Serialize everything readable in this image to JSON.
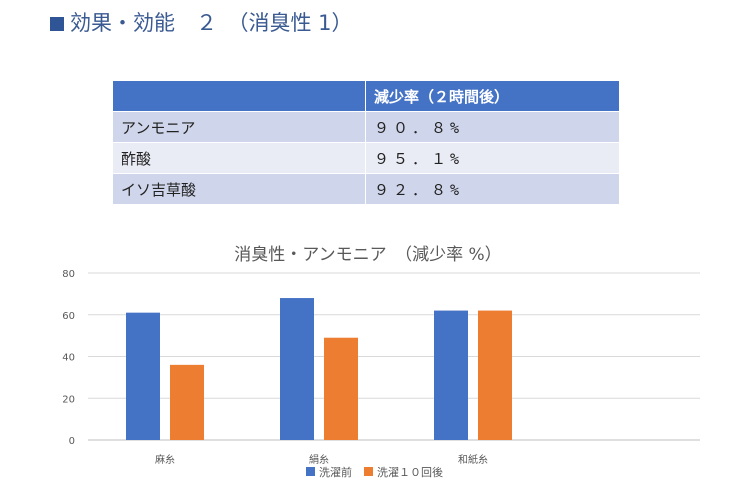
{
  "header": {
    "title": "効果・効能　２　（消臭性 1）"
  },
  "table": {
    "columns": [
      "",
      "減少率（２時間後）"
    ],
    "rows": [
      {
        "name": "アンモニア",
        "value": "９０．８%"
      },
      {
        "name": "酢酸",
        "value": "９５．１%"
      },
      {
        "name": "イソ吉草酸",
        "value": "９２．８%"
      }
    ]
  },
  "chart_data": {
    "type": "bar",
    "title": "消臭性・アンモニア　（減少率 %）",
    "categories": [
      "麻糸",
      "絹糸",
      "和紙糸"
    ],
    "series": [
      {
        "name": "洗濯前",
        "values": [
          61,
          68,
          62
        ],
        "color": "#4472c4"
      },
      {
        "name": "洗濯１０回後",
        "values": [
          36,
          49,
          62
        ],
        "color": "#ed7d31"
      }
    ],
    "ylim": [
      0,
      80
    ],
    "yticks": [
      0,
      20,
      40,
      60,
      80
    ],
    "grid": true,
    "legend": "bottom",
    "xlabel": "",
    "ylabel": ""
  }
}
